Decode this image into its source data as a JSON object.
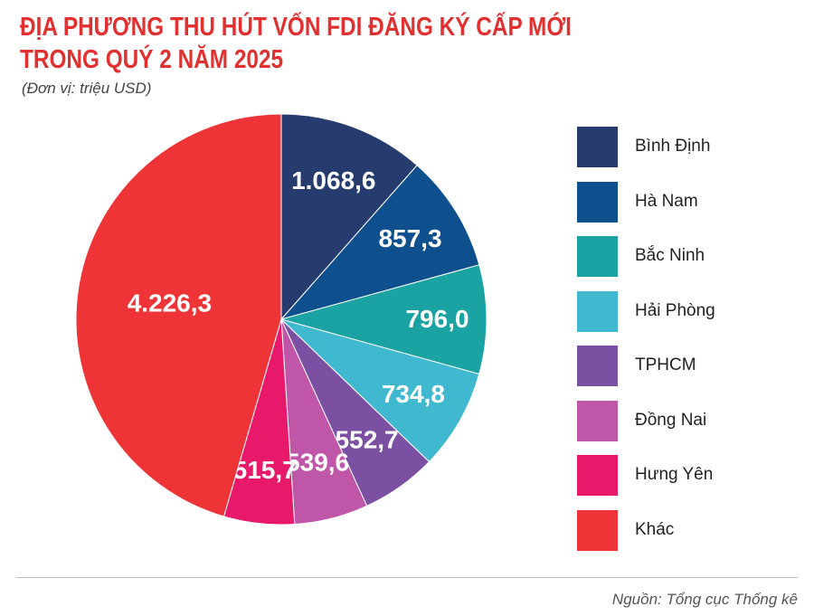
{
  "header": {
    "title": "ĐỊA PHƯƠNG THU HÚT VỐN FDI ĐĂNG KÝ CẤP MỚI TRONG QUÝ 2 NĂM 2025",
    "title_line1": "ĐỊA PHƯƠNG THU HÚT VỐN FDI ĐĂNG KÝ CẤP MỚI",
    "title_line2": "TRONG QUÝ 2 NĂM 2025",
    "unit": "(Đơn vị: triệu USD)"
  },
  "footer": {
    "source": "Nguồn: Tổng cục Thống kê"
  },
  "chart_data": {
    "type": "pie",
    "title": "ĐỊA PHƯƠNG THU HÚT VỐN FDI ĐĂNG KÝ CẤP MỚI TRONG QUÝ 2 NĂM 2025",
    "unit": "(Đơn vị: triệu USD)",
    "start": "12 o'clock, clockwise",
    "legend_position": "right",
    "slices": [
      {
        "label": "Bình Định",
        "value": 1068.6,
        "display": "1.068,6",
        "color": "#263b6e"
      },
      {
        "label": "Hà Nam",
        "value": 857.3,
        "display": "857,3",
        "color": "#0e4f8e"
      },
      {
        "label": "Bắc Ninh",
        "value": 796.0,
        "display": "796,0",
        "color": "#1aa3a2"
      },
      {
        "label": "Hải Phòng",
        "value": 734.8,
        "display": "734,8",
        "color": "#3fb8d0"
      },
      {
        "label": "TPHCM",
        "value": 552.7,
        "display": "552,7",
        "color": "#7b4fa1"
      },
      {
        "label": "Đồng Nai",
        "value": 539.6,
        "display": "539,6",
        "color": "#bf56a8"
      },
      {
        "label": "Hưng Yên",
        "value": 515.7,
        "display": "515,7",
        "color": "#e8196b"
      },
      {
        "label": "Khác",
        "value": 4226.3,
        "display": "4.226,3",
        "color": "#ee3437"
      }
    ]
  }
}
